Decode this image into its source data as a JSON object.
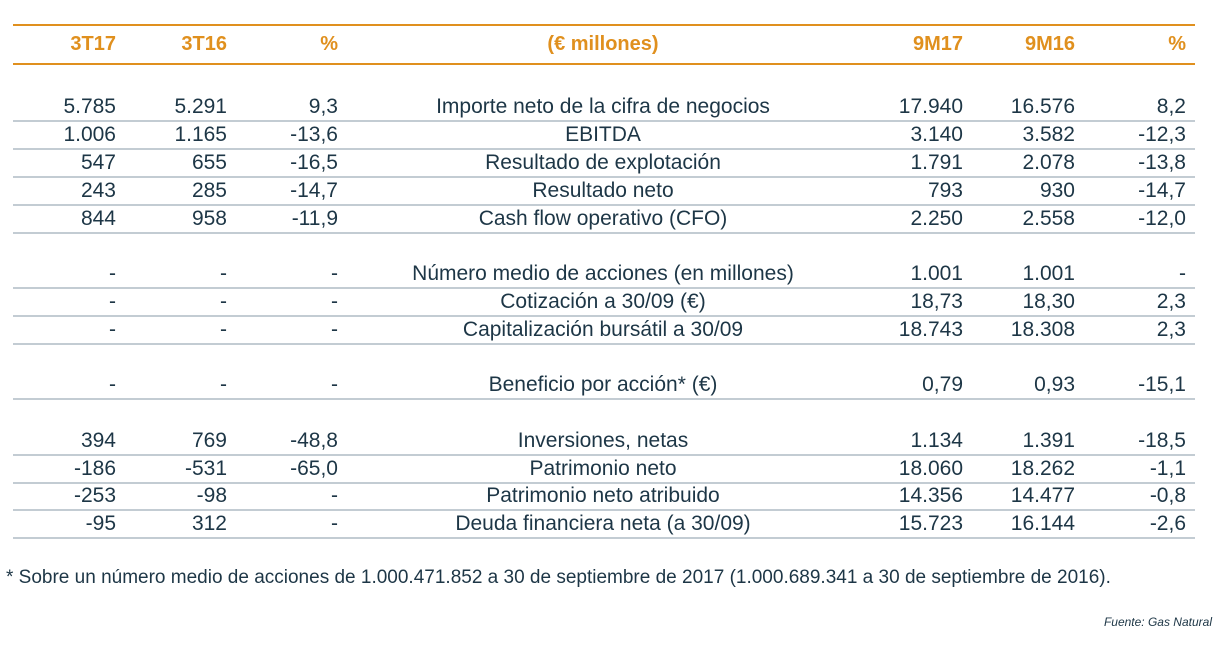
{
  "header": [
    "3T17",
    "3T16",
    "%",
    "(€ millones)",
    "9M17",
    "9M16",
    "%"
  ],
  "groups": [
    [
      [
        "5.785",
        "5.291",
        "9,3",
        "Importe neto de la cifra de negocios",
        "17.940",
        "16.576",
        "8,2"
      ],
      [
        "1.006",
        "1.165",
        "-13,6",
        "EBITDA",
        "3.140",
        "3.582",
        "-12,3"
      ],
      [
        "547",
        "655",
        "-16,5",
        "Resultado de explotación",
        "1.791",
        "2.078",
        "-13,8"
      ],
      [
        "243",
        "285",
        "-14,7",
        "Resultado neto",
        "793",
        "930",
        "-14,7"
      ],
      [
        "844",
        "958",
        "-11,9",
        "Cash flow operativo (CFO)",
        "2.250",
        "2.558",
        "-12,0"
      ]
    ],
    [
      [
        "-",
        "-",
        "-",
        "Número medio de acciones (en millones)",
        "1.001",
        "1.001",
        "-"
      ],
      [
        "-",
        "-",
        "-",
        "Cotización a 30/09 (€)",
        "18,73",
        "18,30",
        "2,3"
      ],
      [
        "-",
        "-",
        "-",
        "Capitalización bursátil a 30/09",
        "18.743",
        "18.308",
        "2,3"
      ]
    ],
    [
      [
        "-",
        "-",
        "-",
        "Beneficio por acción* (€)",
        "0,79",
        "0,93",
        "-15,1"
      ]
    ],
    [
      [
        "394",
        "769",
        "-48,8",
        "Inversiones, netas",
        "1.134",
        "1.391",
        "-18,5"
      ],
      [
        "-186",
        "-531",
        "-65,0",
        "Patrimonio neto",
        "18.060",
        "18.262",
        "-1,1"
      ],
      [
        "-253",
        "-98",
        "-",
        "Patrimonio neto atribuido",
        "14.356",
        "14.477",
        "-0,8"
      ],
      [
        "-95",
        "312",
        "-",
        "Deuda financiera neta (a 30/09)",
        "15.723",
        "16.144",
        "-2,6"
      ]
    ]
  ],
  "footnote": "* Sobre un número medio de acciones de 1.000.471.852 a 30 de septiembre de 2017 (1.000.689.341 a 30 de septiembre de 2016).",
  "source": "Fuente: Gas Natural"
}
